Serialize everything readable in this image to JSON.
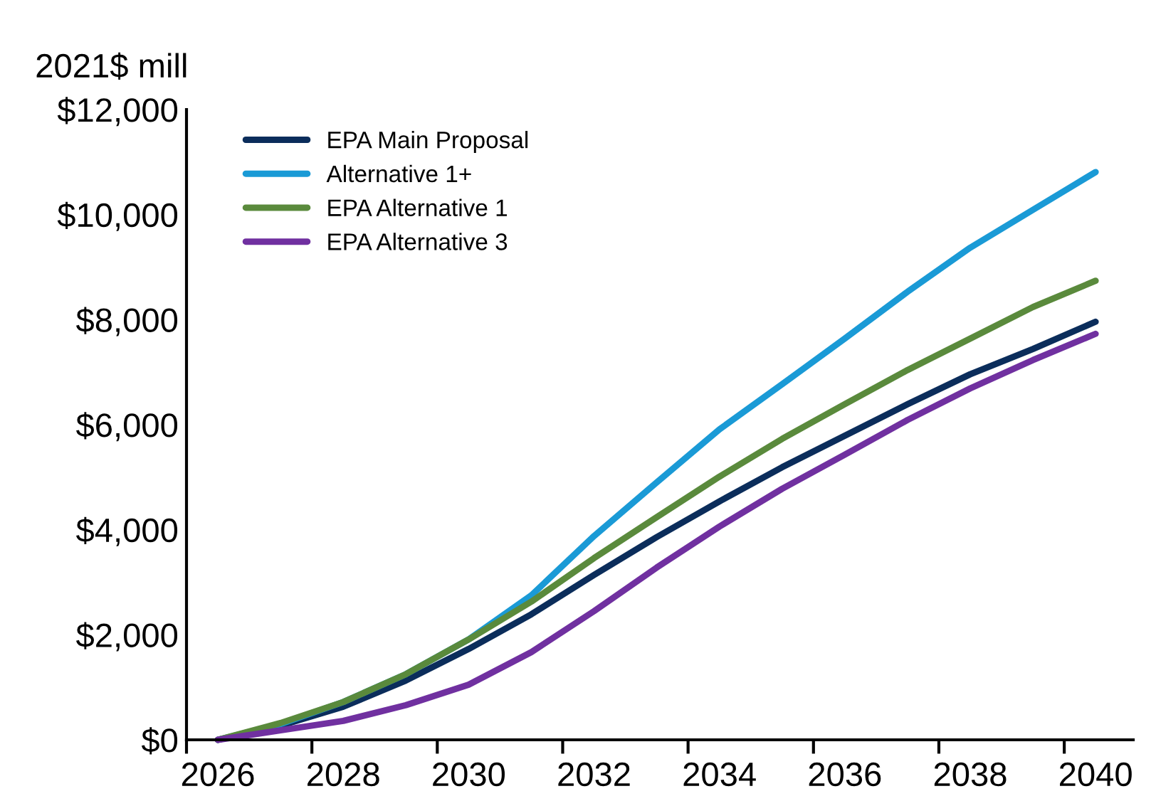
{
  "chart_data": {
    "type": "line",
    "ylabel": "2021$ mill",
    "x": [
      2026,
      2027,
      2028,
      2029,
      2030,
      2031,
      2032,
      2033,
      2034,
      2035,
      2036,
      2037,
      2038,
      2039,
      2040
    ],
    "series": [
      {
        "name": "EPA Main Proposal",
        "color": "#0b2d5b",
        "values": [
          0,
          270,
          630,
          1130,
          1730,
          2390,
          3140,
          3860,
          4540,
          5190,
          5790,
          6390,
          6960,
          7440,
          7960
        ]
      },
      {
        "name": "Alternative 1+",
        "color": "#1a9ad6",
        "values": [
          0,
          300,
          720,
          1250,
          1910,
          2750,
          3880,
          4900,
          5910,
          6770,
          7640,
          8530,
          9370,
          10090,
          10810
        ]
      },
      {
        "name": "EPA Alternative 1",
        "color": "#5a8a3c",
        "values": [
          0,
          320,
          720,
          1250,
          1910,
          2630,
          3460,
          4240,
          5010,
          5730,
          6390,
          7040,
          7640,
          8240,
          8740
        ]
      },
      {
        "name": "EPA Alternative 3",
        "color": "#7030a0",
        "values": [
          0,
          180,
          360,
          660,
          1050,
          1670,
          2450,
          3280,
          4060,
          4780,
          5430,
          6090,
          6690,
          7230,
          7730
        ]
      }
    ],
    "xlim": [
      2025.5,
      2040.6
    ],
    "xticks": [
      2026,
      2028,
      2030,
      2032,
      2034,
      2036,
      2038,
      2040,
      {
        "value": 2025.5,
        "label": null
      },
      {
        "value": 2027.5,
        "label": null
      },
      {
        "value": 2029.5,
        "label": null
      },
      {
        "value": 2031.5,
        "label": null
      },
      {
        "value": 2033.5,
        "label": null
      },
      {
        "value": 2035.5,
        "label": null
      },
      {
        "value": 2037.5,
        "label": null
      },
      {
        "value": 2039.5,
        "label": null
      }
    ],
    "ylim": [
      0,
      12000
    ],
    "yticks": [
      {
        "value": 0,
        "label": "$0"
      },
      {
        "value": 2000,
        "label": "$2,000"
      },
      {
        "value": 4000,
        "label": "$4,000"
      },
      {
        "value": 6000,
        "label": "$6,000"
      },
      {
        "value": 8000,
        "label": "$8,000"
      },
      {
        "value": 10000,
        "label": "$10,000"
      },
      {
        "value": 12000,
        "label": "$12,000"
      }
    ],
    "grid": false,
    "legend": "top left",
    "marker": "none",
    "line_style": "solid"
  }
}
